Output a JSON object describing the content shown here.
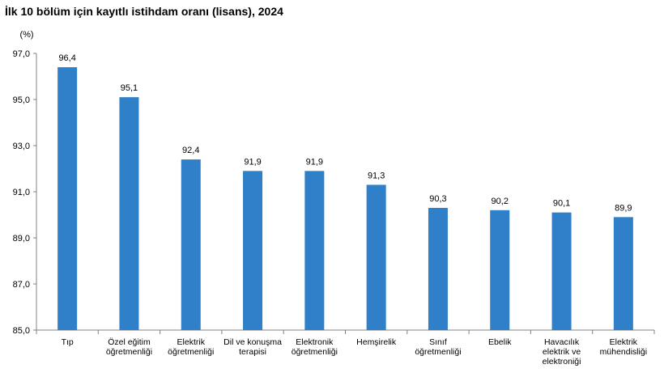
{
  "chart_data": {
    "type": "bar",
    "title": "İlk 10 bölüm için kayıtlı istihdam oranı (lisans), 2024",
    "ylabel": "(%)",
    "xlabel": "",
    "categories": [
      [
        "Tıp"
      ],
      [
        "Özel eğitim",
        "öğretmenliği"
      ],
      [
        "Elektrik",
        "öğretmenliği"
      ],
      [
        "Dil ve konuşma",
        "terapisi"
      ],
      [
        "Elektronik",
        "öğretmenliği"
      ],
      [
        "Hemşirelik"
      ],
      [
        "Sınıf",
        "öğretmenliği"
      ],
      [
        "Ebelik"
      ],
      [
        "Havacılık",
        "elektrik ve",
        "elektroniği"
      ],
      [
        "Elektrik",
        "mühendisliği"
      ]
    ],
    "values": [
      96.4,
      95.1,
      92.4,
      91.9,
      91.9,
      91.3,
      90.3,
      90.2,
      90.1,
      89.9
    ],
    "value_labels": [
      "96,4",
      "95,1",
      "92,4",
      "91,9",
      "91,9",
      "91,3",
      "90,3",
      "90,2",
      "90,1",
      "89,9"
    ],
    "ylim": [
      85,
      97
    ],
    "yticks": [
      85,
      87,
      89,
      91,
      93,
      95,
      97
    ],
    "ytick_labels": [
      "85,0",
      "87,0",
      "89,0",
      "91,0",
      "93,0",
      "95,0",
      "97,0"
    ],
    "grid": false,
    "bar_color": "#2F80C8",
    "axis_color": "#808080"
  }
}
